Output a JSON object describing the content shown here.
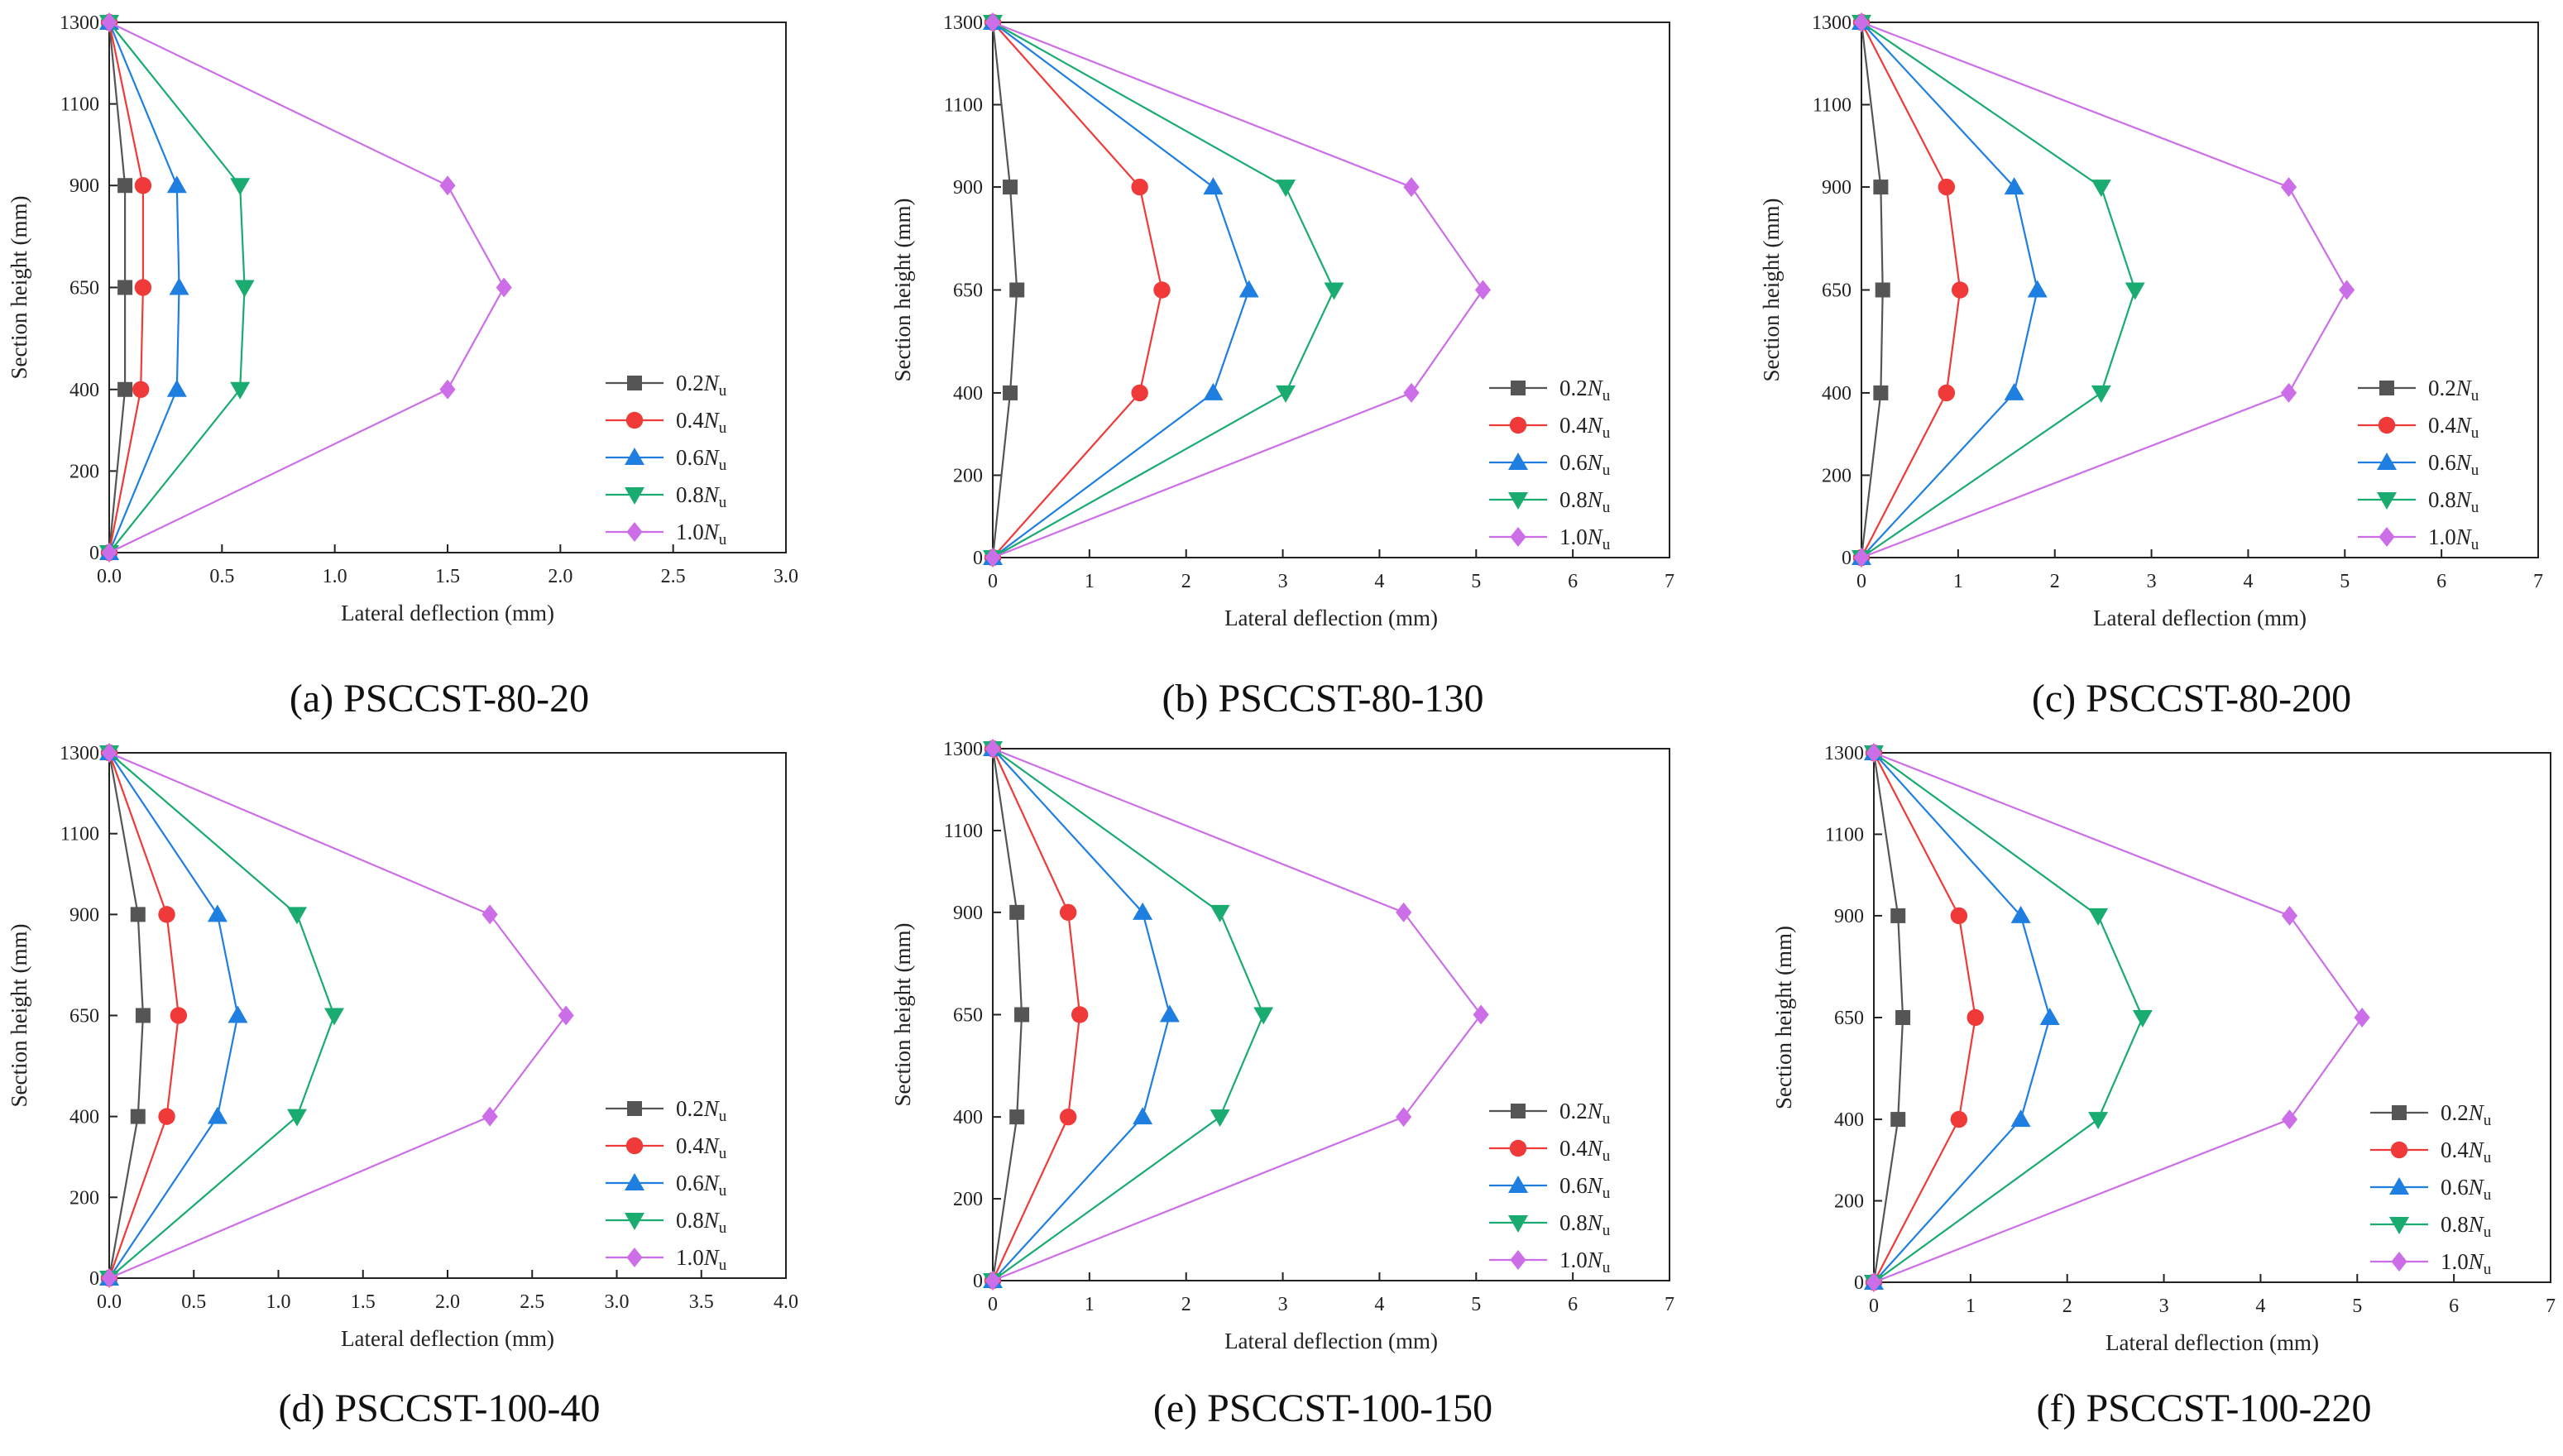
{
  "figure": {
    "series_template": [
      {
        "name": "0.2",
        "color": "#555555",
        "marker": "square"
      },
      {
        "name": "0.4",
        "color": "#f03a3a",
        "marker": "circle"
      },
      {
        "name": "0.6",
        "color": "#1f7fe0",
        "marker": "triangle-up"
      },
      {
        "name": "0.8",
        "color": "#1aab70",
        "marker": "triangle-down"
      },
      {
        "name": "1.0",
        "color": "#cc6ee8",
        "marker": "diamond"
      }
    ],
    "legend_suffix_main": "N",
    "legend_suffix_sub": "u"
  },
  "chart_data": [
    {
      "type": "line",
      "caption": "(a) PSCCST-80-20",
      "xlabel": "Lateral deflection (mm)",
      "ylabel": "Section height (mm)",
      "xlim": [
        0,
        3.0
      ],
      "ylim": [
        0,
        1300
      ],
      "xticks": [
        0.0,
        0.5,
        1.0,
        1.5,
        2.0,
        2.5,
        3.0
      ],
      "xtick_labels": [
        "0.0",
        "0.5",
        "1.0",
        "1.5",
        "2.0",
        "2.5",
        "3.0"
      ],
      "yticks": [
        0,
        200,
        400,
        650,
        900,
        1100,
        1300
      ],
      "ytick_labels": [
        "0",
        "200",
        "400",
        "650",
        "900",
        "1100",
        "1300"
      ],
      "legend_position": "lower-right",
      "heights": [
        0,
        400,
        650,
        900,
        1300
      ],
      "series": [
        {
          "name": "0.2Nu",
          "values": [
            0,
            0.07,
            0.07,
            0.07,
            0
          ]
        },
        {
          "name": "0.4Nu",
          "values": [
            0,
            0.14,
            0.15,
            0.15,
            0
          ]
        },
        {
          "name": "0.6Nu",
          "values": [
            0,
            0.3,
            0.31,
            0.3,
            0
          ]
        },
        {
          "name": "0.8Nu",
          "values": [
            0,
            0.58,
            0.6,
            0.58,
            0
          ]
        },
        {
          "name": "1.0Nu",
          "values": [
            0,
            1.5,
            1.75,
            1.5,
            0
          ]
        }
      ]
    },
    {
      "type": "line",
      "caption": "(b) PSCCST-80-130",
      "xlabel": "Lateral deflection (mm)",
      "ylabel": "Section height (mm)",
      "xlim": [
        0,
        7
      ],
      "ylim": [
        0,
        1300
      ],
      "xticks": [
        0,
        1,
        2,
        3,
        4,
        5,
        6,
        7
      ],
      "xtick_labels": [
        "0",
        "1",
        "2",
        "3",
        "4",
        "5",
        "6",
        "7"
      ],
      "yticks": [
        0,
        200,
        400,
        650,
        900,
        1100,
        1300
      ],
      "ytick_labels": [
        "0",
        "200",
        "400",
        "650",
        "900",
        "1100",
        "1300"
      ],
      "legend_position": "lower-right",
      "heights": [
        0,
        400,
        650,
        900,
        1300
      ],
      "series": [
        {
          "name": "0.2Nu",
          "values": [
            0,
            0.18,
            0.25,
            0.18,
            0
          ]
        },
        {
          "name": "0.4Nu",
          "values": [
            0,
            1.52,
            1.75,
            1.52,
            0
          ]
        },
        {
          "name": "0.6Nu",
          "values": [
            0,
            2.28,
            2.65,
            2.28,
            0
          ]
        },
        {
          "name": "0.8Nu",
          "values": [
            0,
            3.03,
            3.53,
            3.03,
            0
          ]
        },
        {
          "name": "1.0Nu",
          "values": [
            0,
            4.33,
            5.07,
            4.33,
            0
          ]
        }
      ]
    },
    {
      "type": "line",
      "caption": "(c) PSCCST-80-200",
      "xlabel": "Lateral deflection (mm)",
      "ylabel": "Section height (mm)",
      "xlim": [
        0,
        7
      ],
      "ylim": [
        0,
        1300
      ],
      "xticks": [
        0,
        1,
        2,
        3,
        4,
        5,
        6,
        7
      ],
      "xtick_labels": [
        "0",
        "1",
        "2",
        "3",
        "4",
        "5",
        "6",
        "7"
      ],
      "yticks": [
        0,
        200,
        400,
        650,
        900,
        1100,
        1300
      ],
      "ytick_labels": [
        "0",
        "200",
        "400",
        "650",
        "900",
        "1100",
        "1300"
      ],
      "legend_position": "lower-right",
      "heights": [
        0,
        400,
        650,
        900,
        1300
      ],
      "series": [
        {
          "name": "0.2Nu",
          "values": [
            0,
            0.2,
            0.22,
            0.2,
            0
          ]
        },
        {
          "name": "0.4Nu",
          "values": [
            0,
            0.88,
            1.02,
            0.88,
            0
          ]
        },
        {
          "name": "0.6Nu",
          "values": [
            0,
            1.58,
            1.82,
            1.58,
            0
          ]
        },
        {
          "name": "0.8Nu",
          "values": [
            0,
            2.48,
            2.83,
            2.48,
            0
          ]
        },
        {
          "name": "1.0Nu",
          "values": [
            0,
            4.42,
            5.02,
            4.42,
            0
          ]
        }
      ]
    },
    {
      "type": "line",
      "caption": "(d) PSCCST-100-40",
      "xlabel": "Lateral deflection (mm)",
      "ylabel": "Section height (mm)",
      "xlim": [
        0,
        4.0
      ],
      "ylim": [
        0,
        1300
      ],
      "xticks": [
        0.0,
        0.5,
        1.0,
        1.5,
        2.0,
        2.5,
        3.0,
        3.5,
        4.0
      ],
      "xtick_labels": [
        "0.0",
        "0.5",
        "1.0",
        "1.5",
        "2.0",
        "2.5",
        "3.0",
        "3.5",
        "4.0"
      ],
      "yticks": [
        0,
        200,
        400,
        650,
        900,
        1100,
        1300
      ],
      "ytick_labels": [
        "0",
        "200",
        "400",
        "650",
        "900",
        "1100",
        "1300"
      ],
      "legend_position": "lower-right",
      "heights": [
        0,
        400,
        650,
        900,
        1300
      ],
      "series": [
        {
          "name": "0.2Nu",
          "values": [
            0,
            0.17,
            0.2,
            0.17,
            0
          ]
        },
        {
          "name": "0.4Nu",
          "values": [
            0,
            0.34,
            0.41,
            0.34,
            0
          ]
        },
        {
          "name": "0.6Nu",
          "values": [
            0,
            0.64,
            0.76,
            0.64,
            0
          ]
        },
        {
          "name": "0.8Nu",
          "values": [
            0,
            1.11,
            1.33,
            1.11,
            0
          ]
        },
        {
          "name": "1.0Nu",
          "values": [
            0,
            2.25,
            2.7,
            2.25,
            0
          ]
        }
      ]
    },
    {
      "type": "line",
      "caption": "(e) PSCCST-100-150",
      "xlabel": "Lateral deflection (mm)",
      "ylabel": "Section height (mm)",
      "xlim": [
        0,
        7
      ],
      "ylim": [
        0,
        1300
      ],
      "xticks": [
        0,
        1,
        2,
        3,
        4,
        5,
        6,
        7
      ],
      "xtick_labels": [
        "0",
        "1",
        "2",
        "3",
        "4",
        "5",
        "6",
        "7"
      ],
      "yticks": [
        0,
        200,
        400,
        650,
        900,
        1100,
        1300
      ],
      "ytick_labels": [
        "0",
        "200",
        "400",
        "650",
        "900",
        "1100",
        "1300"
      ],
      "legend_position": "lower-right",
      "heights": [
        0,
        400,
        650,
        900,
        1300
      ],
      "series": [
        {
          "name": "0.2Nu",
          "values": [
            0,
            0.25,
            0.3,
            0.25,
            0
          ]
        },
        {
          "name": "0.4Nu",
          "values": [
            0,
            0.78,
            0.9,
            0.78,
            0
          ]
        },
        {
          "name": "0.6Nu",
          "values": [
            0,
            1.55,
            1.83,
            1.55,
            0
          ]
        },
        {
          "name": "0.8Nu",
          "values": [
            0,
            2.35,
            2.8,
            2.35,
            0
          ]
        },
        {
          "name": "1.0Nu",
          "values": [
            0,
            4.25,
            5.05,
            4.25,
            0
          ]
        }
      ]
    },
    {
      "type": "line",
      "caption": "(f) PSCCST-100-220",
      "xlabel": "Lateral deflection (mm)",
      "ylabel": "Section height (mm)",
      "xlim": [
        0,
        7
      ],
      "ylim": [
        0,
        1300
      ],
      "xticks": [
        0,
        1,
        2,
        3,
        4,
        5,
        6,
        7
      ],
      "xtick_labels": [
        "0",
        "1",
        "2",
        "3",
        "4",
        "5",
        "6",
        "7"
      ],
      "yticks": [
        0,
        200,
        400,
        650,
        900,
        1100,
        1300
      ],
      "ytick_labels": [
        "0",
        "200",
        "400",
        "650",
        "900",
        "1100",
        "1300"
      ],
      "legend_position": "lower-right",
      "heights": [
        0,
        400,
        650,
        900,
        1300
      ],
      "series": [
        {
          "name": "0.2Nu",
          "values": [
            0,
            0.25,
            0.3,
            0.25,
            0
          ]
        },
        {
          "name": "0.4Nu",
          "values": [
            0,
            0.88,
            1.05,
            0.88,
            0
          ]
        },
        {
          "name": "0.6Nu",
          "values": [
            0,
            1.52,
            1.82,
            1.52,
            0
          ]
        },
        {
          "name": "0.8Nu",
          "values": [
            0,
            2.32,
            2.78,
            2.32,
            0
          ]
        },
        {
          "name": "1.0Nu",
          "values": [
            0,
            4.3,
            5.05,
            4.3,
            0
          ]
        }
      ]
    }
  ]
}
